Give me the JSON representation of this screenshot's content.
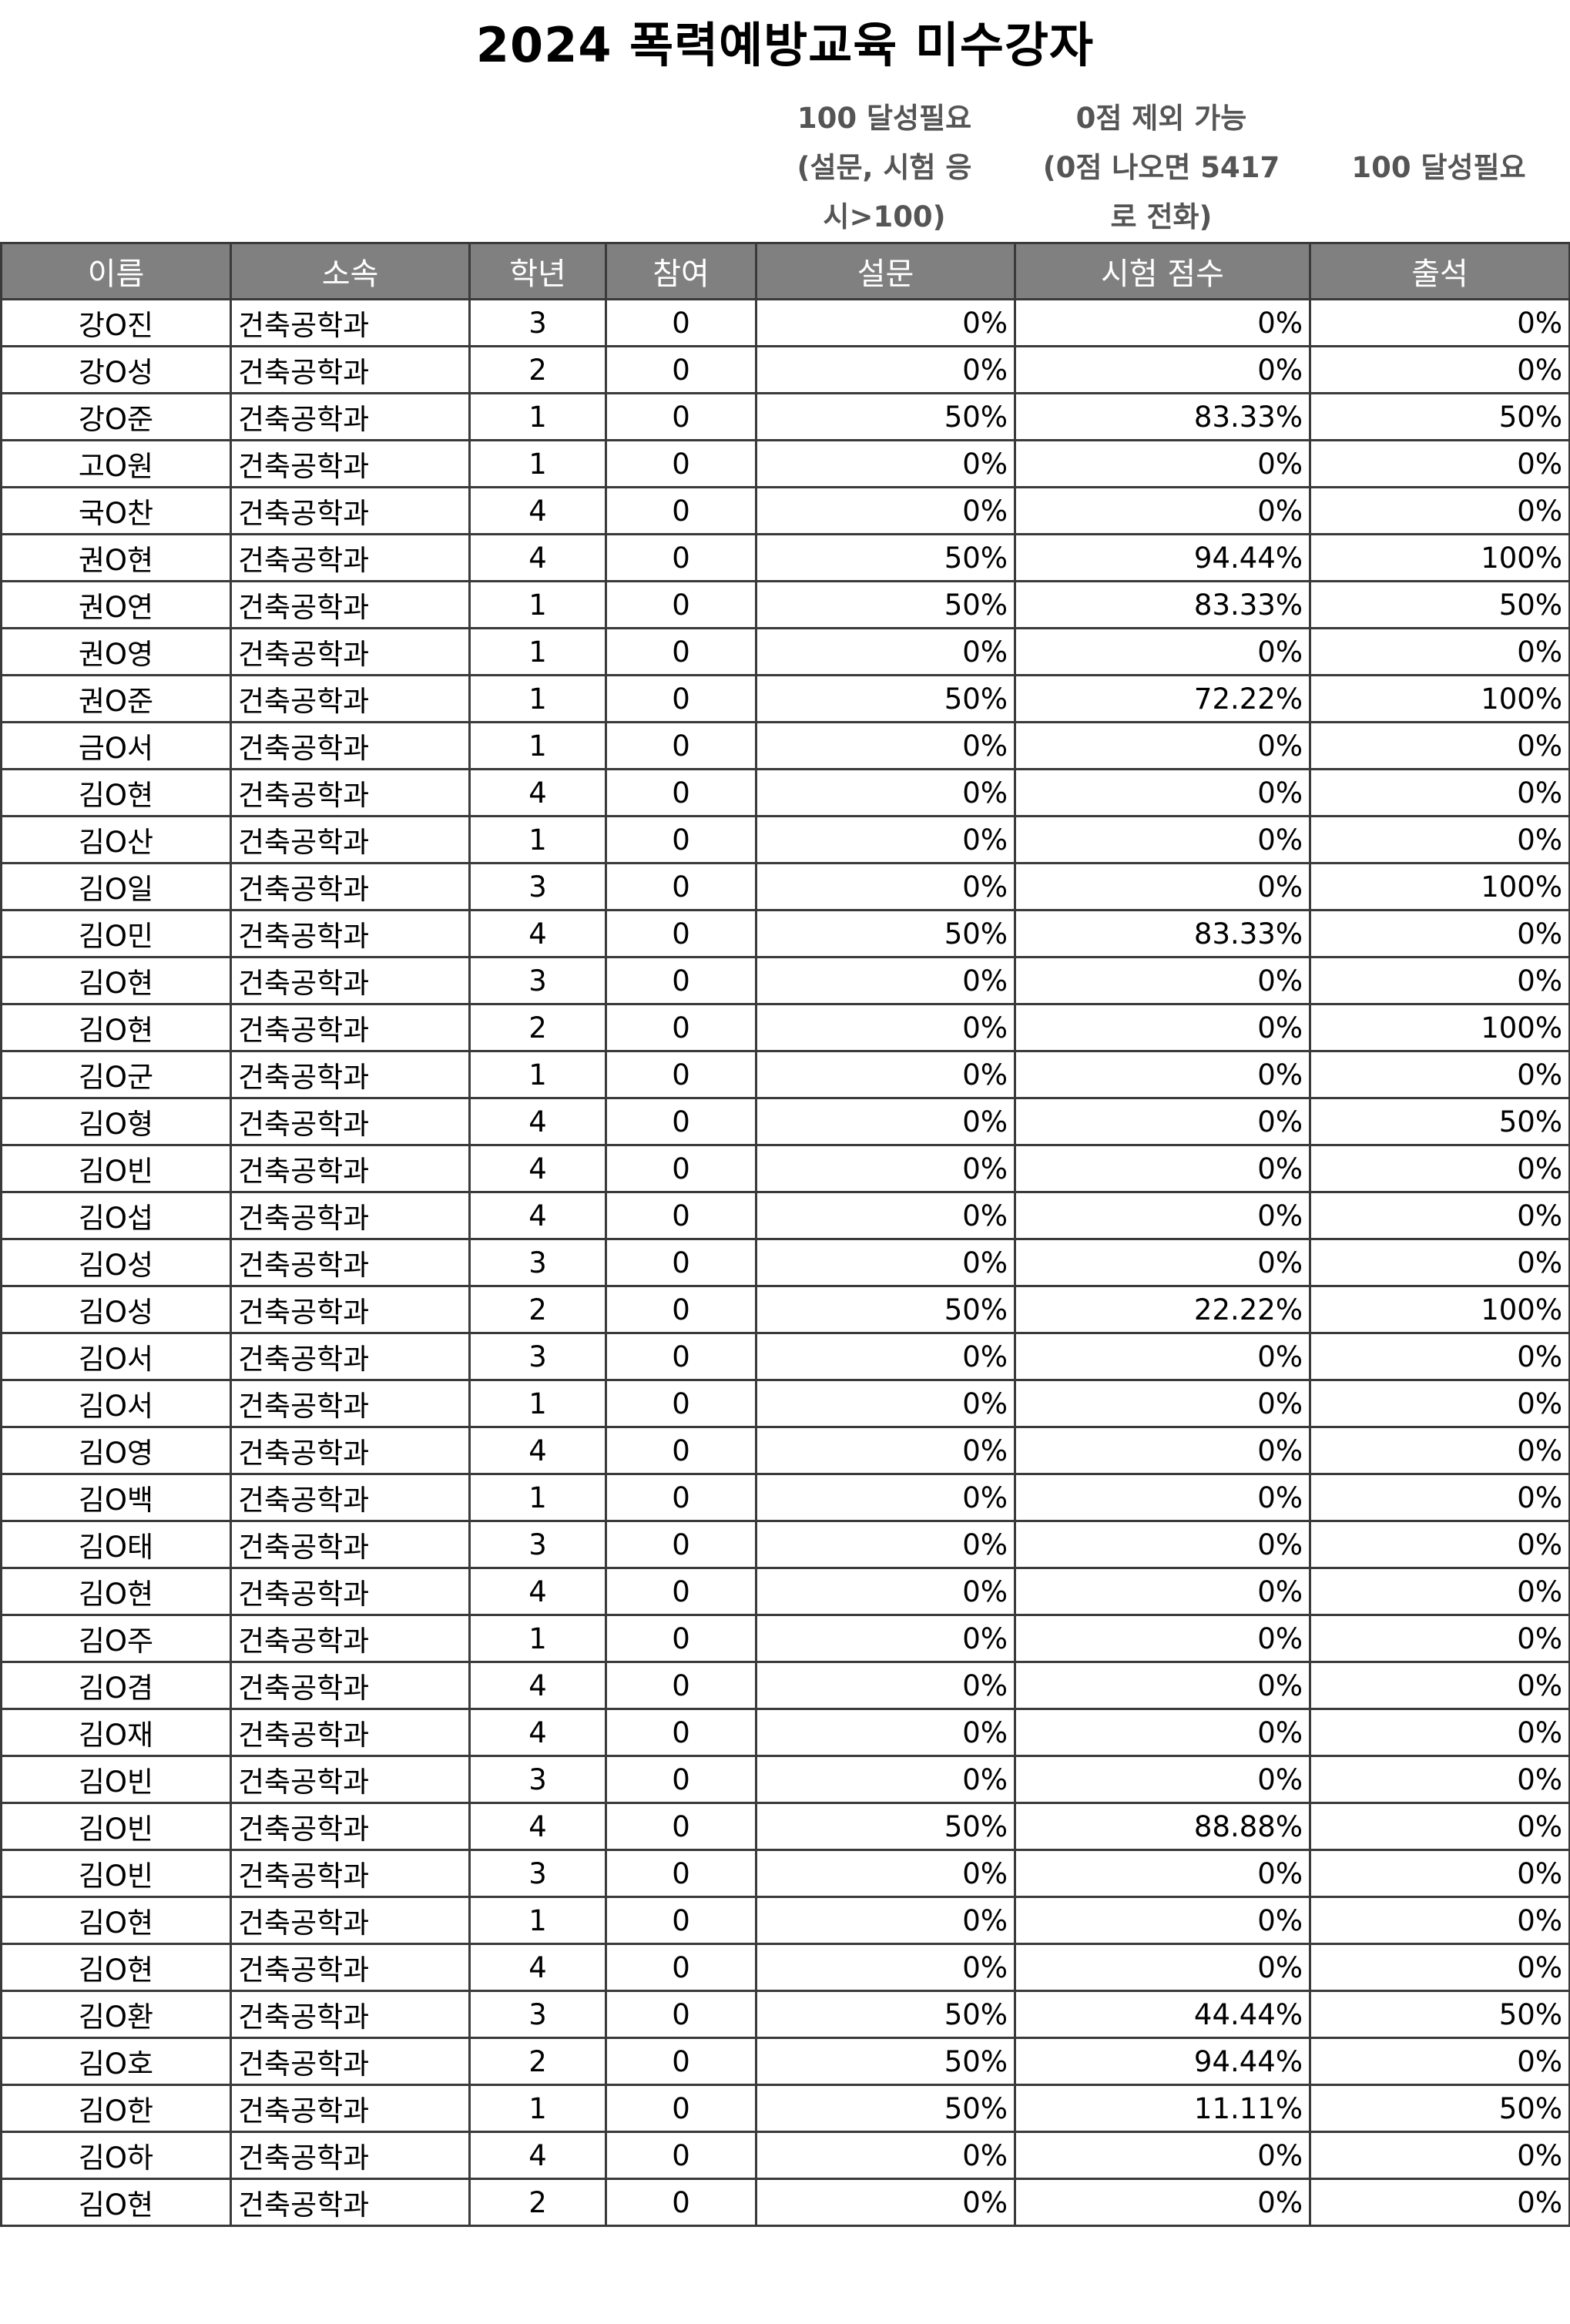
{
  "title": "2024 폭력예방교육 미수강자",
  "notes": {
    "survey": [
      "100 달성필요",
      "(설문, 시험 응",
      "시>100)"
    ],
    "exam": [
      "0점 제외 가능",
      "(0점 나오면 5417",
      "로 전화)"
    ],
    "attendance": [
      "",
      "100 달성필요",
      ""
    ]
  },
  "columns": [
    "이름",
    "소속",
    "학년",
    "참여",
    "설문",
    "시험 점수",
    "출석"
  ],
  "rows": [
    [
      "강O진",
      "건축공학과",
      "3",
      "0",
      "0%",
      "0%",
      "0%"
    ],
    [
      "강O성",
      "건축공학과",
      "2",
      "0",
      "0%",
      "0%",
      "0%"
    ],
    [
      "강O준",
      "건축공학과",
      "1",
      "0",
      "50%",
      "83.33%",
      "50%"
    ],
    [
      "고O원",
      "건축공학과",
      "1",
      "0",
      "0%",
      "0%",
      "0%"
    ],
    [
      "국O찬",
      "건축공학과",
      "4",
      "0",
      "0%",
      "0%",
      "0%"
    ],
    [
      "권O현",
      "건축공학과",
      "4",
      "0",
      "50%",
      "94.44%",
      "100%"
    ],
    [
      "권O연",
      "건축공학과",
      "1",
      "0",
      "50%",
      "83.33%",
      "50%"
    ],
    [
      "권O영",
      "건축공학과",
      "1",
      "0",
      "0%",
      "0%",
      "0%"
    ],
    [
      "권O준",
      "건축공학과",
      "1",
      "0",
      "50%",
      "72.22%",
      "100%"
    ],
    [
      "금O서",
      "건축공학과",
      "1",
      "0",
      "0%",
      "0%",
      "0%"
    ],
    [
      "김O현",
      "건축공학과",
      "4",
      "0",
      "0%",
      "0%",
      "0%"
    ],
    [
      "김O산",
      "건축공학과",
      "1",
      "0",
      "0%",
      "0%",
      "0%"
    ],
    [
      "김O일",
      "건축공학과",
      "3",
      "0",
      "0%",
      "0%",
      "100%"
    ],
    [
      "김O민",
      "건축공학과",
      "4",
      "0",
      "50%",
      "83.33%",
      "0%"
    ],
    [
      "김O현",
      "건축공학과",
      "3",
      "0",
      "0%",
      "0%",
      "0%"
    ],
    [
      "김O현",
      "건축공학과",
      "2",
      "0",
      "0%",
      "0%",
      "100%"
    ],
    [
      "김O군",
      "건축공학과",
      "1",
      "0",
      "0%",
      "0%",
      "0%"
    ],
    [
      "김O형",
      "건축공학과",
      "4",
      "0",
      "0%",
      "0%",
      "50%"
    ],
    [
      "김O빈",
      "건축공학과",
      "4",
      "0",
      "0%",
      "0%",
      "0%"
    ],
    [
      "김O섭",
      "건축공학과",
      "4",
      "0",
      "0%",
      "0%",
      "0%"
    ],
    [
      "김O성",
      "건축공학과",
      "3",
      "0",
      "0%",
      "0%",
      "0%"
    ],
    [
      "김O성",
      "건축공학과",
      "2",
      "0",
      "50%",
      "22.22%",
      "100%"
    ],
    [
      "김O서",
      "건축공학과",
      "3",
      "0",
      "0%",
      "0%",
      "0%"
    ],
    [
      "김O서",
      "건축공학과",
      "1",
      "0",
      "0%",
      "0%",
      "0%"
    ],
    [
      "김O영",
      "건축공학과",
      "4",
      "0",
      "0%",
      "0%",
      "0%"
    ],
    [
      "김O백",
      "건축공학과",
      "1",
      "0",
      "0%",
      "0%",
      "0%"
    ],
    [
      "김O태",
      "건축공학과",
      "3",
      "0",
      "0%",
      "0%",
      "0%"
    ],
    [
      "김O현",
      "건축공학과",
      "4",
      "0",
      "0%",
      "0%",
      "0%"
    ],
    [
      "김O주",
      "건축공학과",
      "1",
      "0",
      "0%",
      "0%",
      "0%"
    ],
    [
      "김O겸",
      "건축공학과",
      "4",
      "0",
      "0%",
      "0%",
      "0%"
    ],
    [
      "김O재",
      "건축공학과",
      "4",
      "0",
      "0%",
      "0%",
      "0%"
    ],
    [
      "김O빈",
      "건축공학과",
      "3",
      "0",
      "0%",
      "0%",
      "0%"
    ],
    [
      "김O빈",
      "건축공학과",
      "4",
      "0",
      "50%",
      "88.88%",
      "0%"
    ],
    [
      "김O빈",
      "건축공학과",
      "3",
      "0",
      "0%",
      "0%",
      "0%"
    ],
    [
      "김O현",
      "건축공학과",
      "1",
      "0",
      "0%",
      "0%",
      "0%"
    ],
    [
      "김O현",
      "건축공학과",
      "4",
      "0",
      "0%",
      "0%",
      "0%"
    ],
    [
      "김O환",
      "건축공학과",
      "3",
      "0",
      "50%",
      "44.44%",
      "50%"
    ],
    [
      "김O호",
      "건축공학과",
      "2",
      "0",
      "50%",
      "94.44%",
      "0%"
    ],
    [
      "김O한",
      "건축공학과",
      "1",
      "0",
      "50%",
      "11.11%",
      "50%"
    ],
    [
      "김O하",
      "건축공학과",
      "4",
      "0",
      "0%",
      "0%",
      "0%"
    ],
    [
      "김O현",
      "건축공학과",
      "2",
      "0",
      "0%",
      "0%",
      "0%"
    ]
  ]
}
